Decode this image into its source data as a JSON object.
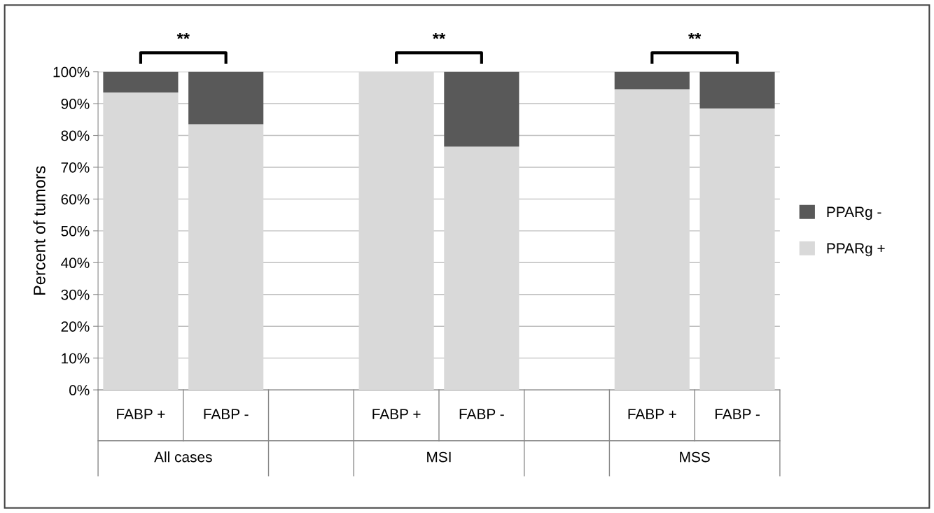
{
  "chart_data": {
    "type": "bar",
    "stacked": true,
    "ylabel": "Percent of tumors",
    "categories": [
      "FABP +",
      "FABP -",
      null,
      "FABP +",
      "FABP -",
      null,
      "FABP +",
      "FABP -"
    ],
    "series": [
      {
        "name": "PPARg +",
        "color": "#d9d9d9",
        "values": [
          93.5,
          83.5,
          null,
          100,
          76.5,
          null,
          94.5,
          88.5
        ]
      },
      {
        "name": "PPARg -",
        "color": "#595959",
        "values": [
          6.5,
          16.5,
          null,
          0,
          23.5,
          null,
          5.5,
          11.5
        ]
      }
    ],
    "ylim": [
      0,
      100
    ],
    "yticks": [
      {
        "value": 0,
        "label": "0%"
      },
      {
        "value": 10,
        "label": "10%"
      },
      {
        "value": 20,
        "label": "20%"
      },
      {
        "value": 30,
        "label": "30%"
      },
      {
        "value": 40,
        "label": "40%"
      },
      {
        "value": 50,
        "label": "50%"
      },
      {
        "value": 60,
        "label": "60%"
      },
      {
        "value": 70,
        "label": "70%"
      },
      {
        "value": 80,
        "label": "80%"
      },
      {
        "value": 90,
        "label": "90%"
      },
      {
        "value": 100,
        "label": "100%"
      }
    ],
    "grid": "y",
    "legend": "right",
    "annotations": [
      "**",
      "**",
      "**",
      "All cases",
      "MSI",
      "MSS"
    ]
  }
}
